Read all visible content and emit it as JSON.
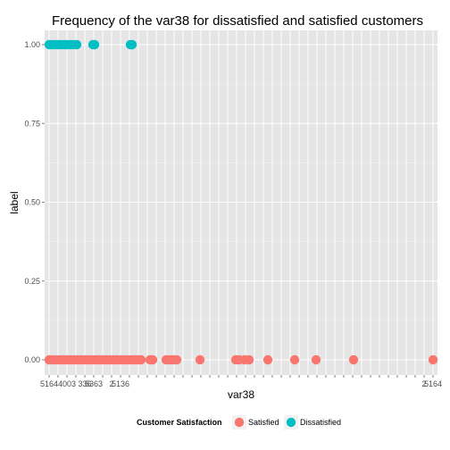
{
  "chart_data": {
    "type": "scatter",
    "title": "Frequency of the var38 for dissatisfied and satisfied customers",
    "xlabel": "var38",
    "ylabel": "label",
    "y_ticks": [
      "0.00",
      "0.25",
      "0.50",
      "0.75",
      "1.00"
    ],
    "ylim": [
      0,
      1
    ],
    "x_ticks": [
      "5164",
      "",
      "4003",
      "",
      "336",
      "5363",
      "",
      "2",
      "5136",
      "",
      "",
      "",
      "",
      "",
      "",
      "",
      "",
      "",
      "",
      "",
      "",
      "",
      "",
      "",
      "",
      "",
      "",
      "",
      "",
      "",
      "",
      "",
      "",
      "",
      "",
      "",
      "",
      "",
      "",
      "",
      "",
      "",
      "2",
      "5164"
    ],
    "x_range": [
      0.5,
      44.5
    ],
    "grid": true,
    "legend_position": "bottom",
    "legend_title": "Customer Satisfaction",
    "series": [
      {
        "name": "Satisfied",
        "color": "#f8766d",
        "y": 0,
        "x": [
          1,
          1.4,
          1.8,
          2.2,
          2.6,
          3,
          3.4,
          3.8,
          4.2,
          4.6,
          5,
          5.4,
          5.8,
          6.2,
          6.6,
          7,
          7.4,
          7.8,
          8.2,
          8.6,
          9,
          9.4,
          9.8,
          10.2,
          10.6,
          11,
          11.3,
          12.3,
          12.6,
          14.1,
          14.5,
          14.9,
          15.3,
          17.9,
          21.9,
          22.3,
          22.9,
          23.4,
          25.5,
          28.5,
          30.9,
          35.1,
          44
        ]
      },
      {
        "name": "Dissatisfied",
        "color": "#00bfc4",
        "y": 1,
        "x": [
          1,
          1.3,
          1.6,
          1.9,
          2.2,
          2.5,
          2.8,
          3.1,
          3.4,
          3.7,
          4.1,
          5.9,
          6.1,
          10.1,
          10.3
        ]
      }
    ]
  }
}
